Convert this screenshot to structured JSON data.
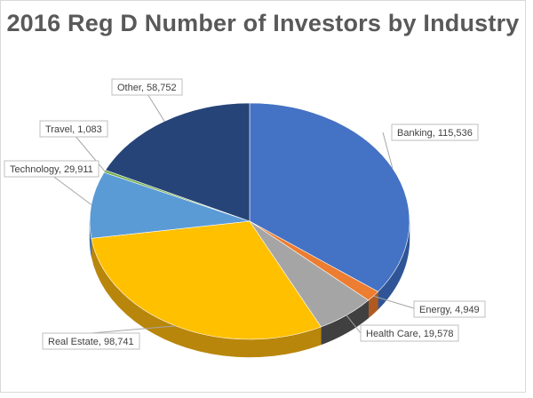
{
  "chart_data": {
    "type": "pie",
    "title": "2016 Reg D Number of Investors by Industry",
    "slices": [
      {
        "label": "Banking",
        "value": 115536,
        "value_text": "115,536",
        "color": "#4472c4",
        "side": "#2f5597"
      },
      {
        "label": "Energy",
        "value": 4949,
        "value_text": "4,949",
        "color": "#ed7d31",
        "side": "#ae5a21"
      },
      {
        "label": "Health Care",
        "value": 19578,
        "value_text": "19,578",
        "color": "#a5a5a5",
        "side": "#404040"
      },
      {
        "label": "Real Estate",
        "value": 98741,
        "value_text": "98,741",
        "color": "#ffc000",
        "side": "#b8860b"
      },
      {
        "label": "Technology",
        "value": 29911,
        "value_text": "29,911",
        "color": "#5b9bd5",
        "side": "#3f6f9c"
      },
      {
        "label": "Travel",
        "value": 1083,
        "value_text": "1,083",
        "color": "#70ad47",
        "side": "#4e7a31"
      },
      {
        "label": "Other",
        "value": 58752,
        "value_text": "58,752",
        "color": "#264478",
        "side": "#1a2f54"
      }
    ],
    "data_labels": "category, value",
    "legend": "none"
  }
}
